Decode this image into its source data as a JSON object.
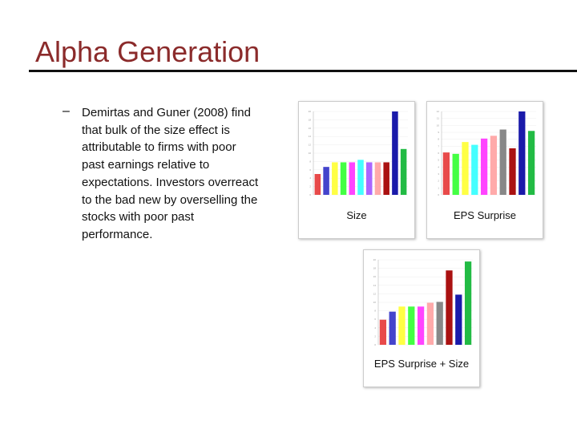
{
  "header": {
    "title": "Alpha Generation"
  },
  "bullet": {
    "marker": "–",
    "lines": [
      "Demirtas and Guner (2008) find",
      "that bulk of the size effect is",
      "attributable to firms with poor",
      "past earnings relative to",
      "expectations. Investors overreact",
      "to the bad new by overselling the",
      "stocks with poor past",
      "performance."
    ]
  },
  "charts": [
    {
      "caption": "Size",
      "ylim": [
        0,
        20
      ],
      "yticks": [
        0,
        2,
        4,
        6,
        8,
        10,
        12,
        14,
        16,
        18,
        20
      ],
      "values": [
        5,
        6.7,
        7.8,
        7.8,
        7.8,
        8.4,
        7.8,
        7.8,
        7.8,
        20,
        11
      ],
      "colors": [
        "#e84a4a",
        "#4444cc",
        "#ffff44",
        "#44ff44",
        "#ff44ff",
        "#44ffff",
        "#aa66ff",
        "#ffaaaa",
        "#aa1111",
        "#1a1aaa",
        "#22bb44"
      ]
    },
    {
      "caption": "EPS Surprise",
      "ylim": [
        0,
        12
      ],
      "yticks": [
        0,
        1,
        2,
        3,
        4,
        5,
        6,
        7,
        8,
        9,
        10,
        11,
        12
      ],
      "values": [
        6.1,
        5.9,
        7.6,
        7.2,
        8.1,
        8.5,
        9.4,
        6.7,
        12,
        9.2
      ],
      "colors": [
        "#e84a4a",
        "#44ff44",
        "#ffff44",
        "#44ffff",
        "#ff44ff",
        "#ffaaaa",
        "#888888",
        "#aa1111",
        "#1a1aaa",
        "#22bb44"
      ]
    },
    {
      "caption": "EPS Surprise + Size",
      "ylim": [
        0,
        20
      ],
      "yticks": [
        0,
        2,
        4,
        6,
        8,
        10,
        12,
        14,
        16,
        18,
        20
      ],
      "values": [
        5.9,
        7.8,
        9,
        9,
        9,
        9.9,
        10.1,
        17.5,
        11.8,
        19.6
      ],
      "colors": [
        "#e84a4a",
        "#4444cc",
        "#ffff44",
        "#44ff44",
        "#ff44ff",
        "#ffaaaa",
        "#888888",
        "#aa1111",
        "#1a1aaa",
        "#22bb44"
      ]
    }
  ]
}
